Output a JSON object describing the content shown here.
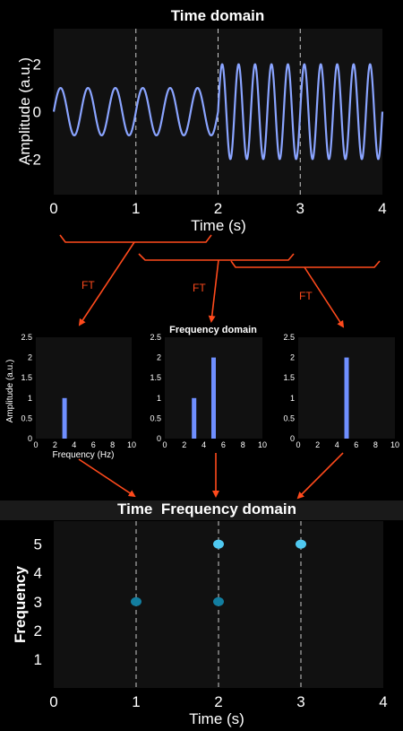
{
  "colors": {
    "background": "#000000",
    "plot_bg": "#111111",
    "wave": "#8aa4ff",
    "arrow": "#ff4a1c",
    "bar": "#6f8fff",
    "dot_dark": "#127ea0",
    "dot_light": "#4fc8f0"
  },
  "labels": {
    "time_title": "Time domain",
    "time_ylabel": "Amplitude (a.u.)",
    "time_xlabel": "Time (s)",
    "ft": "FT",
    "freq_title": "Frequency domain",
    "freq_ylabel": "Amplitude (a.u.)",
    "freq_xlabel": "Frequency (Hz)",
    "tf_title": "Time  Frequency domain",
    "tf_ylabel": "Frequency",
    "tf_xlabel": "Time (s)"
  },
  "chart_data": [
    {
      "type": "line",
      "title": "Time domain",
      "xlabel": "Time (s)",
      "ylabel": "Amplitude (a.u.)",
      "xlim": [
        0,
        4
      ],
      "ylim": [
        -3.5,
        3.5
      ],
      "xticks": [
        0,
        1,
        2,
        3,
        4
      ],
      "yticks": [
        2,
        0,
        -2
      ],
      "segments": [
        {
          "t_start": 0,
          "t_end": 2,
          "frequency_hz": 3,
          "amplitude": 1
        },
        {
          "t_start": 2,
          "t_end": 4,
          "frequency_hz": 5,
          "amplitude": 2
        }
      ],
      "dashed_x": [
        1,
        2,
        3
      ]
    },
    {
      "type": "bar",
      "ylabel": "Amplitude (a.u.)",
      "xlabel": "Frequency (Hz)",
      "xlim": [
        0,
        10
      ],
      "ylim": [
        0,
        2.5
      ],
      "xticks": [
        0,
        2,
        4,
        6,
        8,
        10
      ],
      "yticks": [
        0,
        0.5,
        1,
        1.5,
        2,
        2.5
      ],
      "x": [
        3
      ],
      "values": [
        1
      ]
    },
    {
      "type": "bar",
      "title": "Frequency domain",
      "xlim": [
        0,
        10
      ],
      "ylim": [
        0,
        2.5
      ],
      "xticks": [
        0,
        2,
        4,
        6,
        8,
        10
      ],
      "yticks": [
        0,
        0.5,
        1,
        1.5,
        2,
        2.5
      ],
      "x": [
        3,
        5
      ],
      "values": [
        1,
        2
      ]
    },
    {
      "type": "bar",
      "xlim": [
        0,
        10
      ],
      "ylim": [
        0,
        2.5
      ],
      "xticks": [
        0,
        2,
        4,
        6,
        8,
        10
      ],
      "yticks": [
        0,
        0.5,
        1,
        1.5,
        2,
        2.5
      ],
      "x": [
        5
      ],
      "values": [
        2
      ]
    },
    {
      "type": "scatter",
      "title": "Time  Frequency domain",
      "xlabel": "Time (s)",
      "ylabel": "Frequency",
      "xlim": [
        0,
        4
      ],
      "ylim": [
        0,
        5.8
      ],
      "xticks": [
        0,
        1,
        2,
        3,
        4
      ],
      "yticks": [
        1,
        2,
        3,
        4,
        5
      ],
      "points": [
        {
          "x": 1,
          "y": 3,
          "strength": "low"
        },
        {
          "x": 2,
          "y": 3,
          "strength": "low"
        },
        {
          "x": 2,
          "y": 5,
          "strength": "high"
        },
        {
          "x": 3,
          "y": 5,
          "strength": "high"
        }
      ],
      "dashed_x": [
        1,
        2,
        3
      ]
    }
  ]
}
